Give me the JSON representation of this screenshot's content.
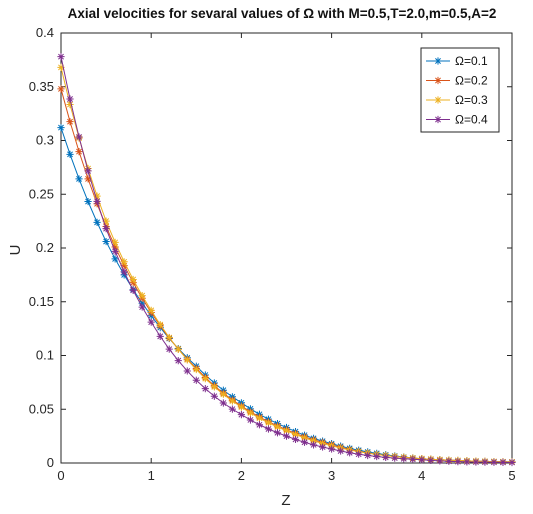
{
  "chart_data": {
    "type": "line",
    "title": "Axial velocities for sevaral values of Ω with M=0.5,T=2.0,m=0.5,A=2",
    "xlabel": "Z",
    "ylabel": "U",
    "xlim": [
      0,
      5
    ],
    "ylim": [
      0,
      0.4
    ],
    "xticks": [
      "0",
      "1",
      "2",
      "3",
      "4",
      "5"
    ],
    "yticks": [
      "0",
      "0.05",
      "0.1",
      "0.15",
      "0.2",
      "0.25",
      "0.3",
      "0.35",
      "0.4"
    ],
    "grid": false,
    "legend_position": "top-right",
    "marker": "asterisk",
    "x": [
      0,
      0.5,
      1,
      1.5,
      2,
      2.5,
      3,
      3.5,
      4,
      4.5,
      5
    ],
    "series": [
      {
        "name": "Ω=0.1",
        "color": "#0072BD",
        "values": [
          0.312,
          0.206,
          0.137,
          0.09,
          0.056,
          0.033,
          0.018,
          0.009,
          0.004,
          0.002,
          0.001
        ]
      },
      {
        "name": "Ω=0.2",
        "color": "#D95319",
        "values": [
          0.348,
          0.22,
          0.14,
          0.088,
          0.053,
          0.031,
          0.017,
          0.008,
          0.004,
          0.002,
          0.001
        ]
      },
      {
        "name": "Ω=0.3",
        "color": "#EDB120",
        "values": [
          0.368,
          0.225,
          0.142,
          0.087,
          0.052,
          0.03,
          0.016,
          0.008,
          0.004,
          0.002,
          0.001
        ]
      },
      {
        "name": "Ω=0.4",
        "color": "#7E2F8E",
        "values": [
          0.378,
          0.218,
          0.131,
          0.077,
          0.045,
          0.025,
          0.013,
          0.006,
          0.003,
          0.001,
          0.0005
        ]
      }
    ]
  }
}
